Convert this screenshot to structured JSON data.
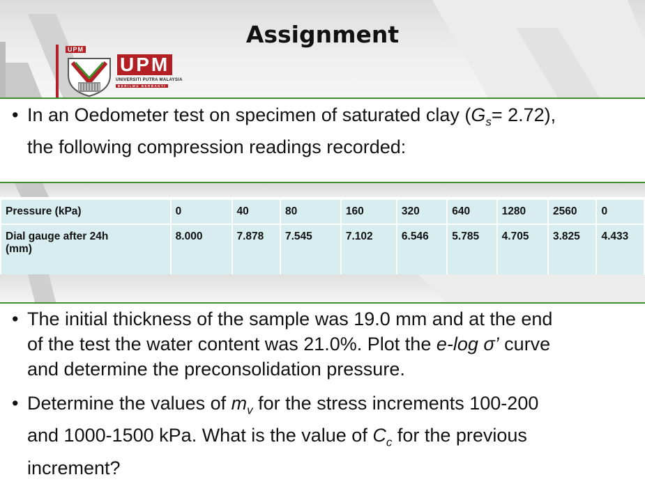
{
  "logo": {
    "small_text": "UPM",
    "big_text": "UPM",
    "university_name": "UNIVERSITI PUTRA MALAYSIA",
    "motto": "BERILMU BERBAKTI",
    "brand_red": "#b22025",
    "accent_green": "#3e8f2e"
  },
  "title": "Assignment",
  "intro": {
    "bullet": "•",
    "line1_pre": "In an Oedometer test on specimen of saturated clay (",
    "gs_symbol": "G",
    "gs_sub": "s",
    "line1_post": "= 2.72),",
    "line2": "the following compression readings recorded:"
  },
  "table": {
    "pressure_label": "Pressure (kPa)",
    "dial_label_1": "Dial gauge after 24h",
    "dial_label_2": "(mm)",
    "pressures": [
      "0",
      "40",
      "80",
      "160",
      "320",
      "640",
      "1280",
      "2560",
      "0"
    ],
    "dial_readings": [
      "8.000",
      "7.878",
      "7.545",
      "7.102",
      "6.546",
      "5.785",
      "4.705",
      "3.825",
      "4.433"
    ],
    "cell_color": "#d7edf0"
  },
  "question1": {
    "bullet": "•",
    "line1": "The initial thickness of the sample was 19.0 mm and at the end",
    "line2_pre": "of the test the water content was 21.0%. Plot the ",
    "line2_italic": "e-log σ’",
    "line2_post": " curve",
    "line3": "and determine the preconsolidation pressure."
  },
  "question2": {
    "bullet": "•",
    "line1_pre": "Determine the values of ",
    "mv_symbol": "m",
    "mv_sub": "v",
    "line1_post": " for the stress increments 100-200",
    "line2_pre": "and 1000-1500 kPa. What is the value of ",
    "cc_symbol": "C",
    "cc_sub": "c",
    "line2_post": " for the previous",
    "line3": "increment?"
  }
}
